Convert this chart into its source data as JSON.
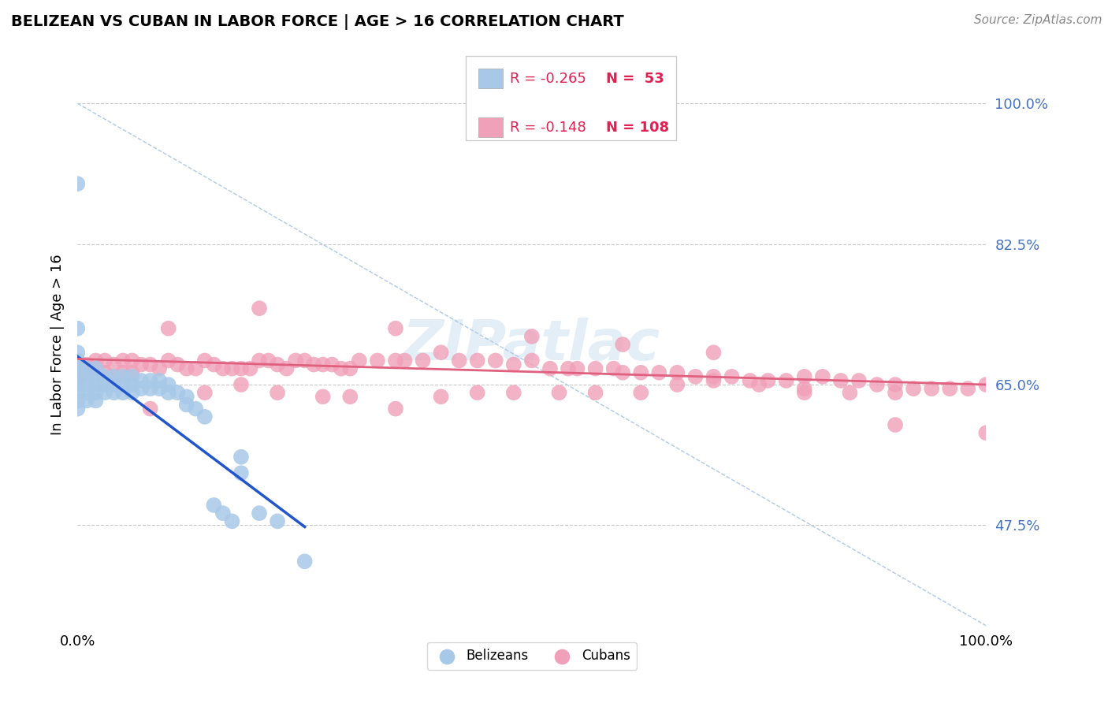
{
  "title": "BELIZEAN VS CUBAN IN LABOR FORCE | AGE > 16 CORRELATION CHART",
  "source": "Source: ZipAtlas.com",
  "ylabel": "In Labor Force | Age > 16",
  "xlim": [
    0.0,
    1.0
  ],
  "ylim": [
    0.35,
    1.05
  ],
  "y_tick_values": [
    0.475,
    0.65,
    0.825,
    1.0
  ],
  "background_color": "#ffffff",
  "grid_color": "#c8c8c8",
  "belizean_color": "#a8c8e8",
  "cuban_color": "#f0a0b8",
  "belizean_line_color": "#2255cc",
  "cuban_line_color": "#e06080",
  "diagonal_color": "#b0c8e8",
  "legend_r_color": "#e02050",
  "legend_n_color": "#e02050",
  "r_belizean": -0.265,
  "n_belizean": 53,
  "r_cuban": -0.148,
  "n_cuban": 108,
  "belizean_scatter_x": [
    0.0,
    0.0,
    0.0,
    0.0,
    0.0,
    0.0,
    0.0,
    0.0,
    0.0,
    0.0,
    0.01,
    0.01,
    0.01,
    0.01,
    0.01,
    0.02,
    0.02,
    0.02,
    0.02,
    0.02,
    0.03,
    0.03,
    0.03,
    0.04,
    0.04,
    0.04,
    0.05,
    0.05,
    0.05,
    0.06,
    0.06,
    0.06,
    0.07,
    0.07,
    0.08,
    0.08,
    0.09,
    0.09,
    0.1,
    0.1,
    0.11,
    0.12,
    0.12,
    0.13,
    0.14,
    0.15,
    0.16,
    0.17,
    0.18,
    0.18,
    0.2,
    0.22,
    0.25
  ],
  "belizean_scatter_y": [
    0.9,
    0.72,
    0.69,
    0.68,
    0.67,
    0.66,
    0.65,
    0.64,
    0.63,
    0.62,
    0.67,
    0.66,
    0.65,
    0.64,
    0.63,
    0.67,
    0.66,
    0.65,
    0.64,
    0.63,
    0.66,
    0.65,
    0.64,
    0.66,
    0.65,
    0.64,
    0.66,
    0.65,
    0.64,
    0.66,
    0.65,
    0.64,
    0.655,
    0.645,
    0.655,
    0.645,
    0.655,
    0.645,
    0.65,
    0.64,
    0.64,
    0.635,
    0.625,
    0.62,
    0.61,
    0.5,
    0.49,
    0.48,
    0.56,
    0.54,
    0.49,
    0.48,
    0.43
  ],
  "cuban_scatter_x": [
    0.0,
    0.0,
    0.0,
    0.01,
    0.01,
    0.02,
    0.02,
    0.03,
    0.03,
    0.04,
    0.04,
    0.05,
    0.05,
    0.06,
    0.06,
    0.07,
    0.08,
    0.09,
    0.1,
    0.11,
    0.12,
    0.13,
    0.14,
    0.15,
    0.16,
    0.17,
    0.18,
    0.19,
    0.2,
    0.21,
    0.22,
    0.23,
    0.24,
    0.25,
    0.26,
    0.27,
    0.28,
    0.29,
    0.3,
    0.31,
    0.33,
    0.35,
    0.36,
    0.38,
    0.4,
    0.42,
    0.44,
    0.46,
    0.48,
    0.5,
    0.52,
    0.54,
    0.55,
    0.57,
    0.59,
    0.6,
    0.62,
    0.64,
    0.66,
    0.68,
    0.7,
    0.72,
    0.74,
    0.76,
    0.78,
    0.8,
    0.82,
    0.84,
    0.86,
    0.88,
    0.9,
    0.92,
    0.94,
    0.96,
    0.98,
    1.0,
    0.08,
    0.1,
    0.14,
    0.18,
    0.22,
    0.27,
    0.3,
    0.35,
    0.4,
    0.44,
    0.48,
    0.53,
    0.57,
    0.62,
    0.66,
    0.7,
    0.75,
    0.8,
    0.85,
    0.9,
    0.2,
    0.35,
    0.5,
    0.6,
    0.7,
    0.8,
    0.9,
    1.0
  ],
  "cuban_scatter_y": [
    0.68,
    0.67,
    0.66,
    0.675,
    0.665,
    0.68,
    0.67,
    0.68,
    0.665,
    0.675,
    0.66,
    0.68,
    0.665,
    0.68,
    0.665,
    0.675,
    0.675,
    0.67,
    0.72,
    0.675,
    0.67,
    0.67,
    0.68,
    0.675,
    0.67,
    0.67,
    0.67,
    0.67,
    0.68,
    0.68,
    0.675,
    0.67,
    0.68,
    0.68,
    0.675,
    0.675,
    0.675,
    0.67,
    0.67,
    0.68,
    0.68,
    0.68,
    0.68,
    0.68,
    0.69,
    0.68,
    0.68,
    0.68,
    0.675,
    0.68,
    0.67,
    0.67,
    0.67,
    0.67,
    0.67,
    0.665,
    0.665,
    0.665,
    0.665,
    0.66,
    0.66,
    0.66,
    0.655,
    0.655,
    0.655,
    0.66,
    0.66,
    0.655,
    0.655,
    0.65,
    0.65,
    0.645,
    0.645,
    0.645,
    0.645,
    0.65,
    0.62,
    0.68,
    0.64,
    0.65,
    0.64,
    0.635,
    0.635,
    0.62,
    0.635,
    0.64,
    0.64,
    0.64,
    0.64,
    0.64,
    0.65,
    0.655,
    0.65,
    0.645,
    0.64,
    0.64,
    0.745,
    0.72,
    0.71,
    0.7,
    0.69,
    0.64,
    0.6,
    0.59
  ],
  "belizean_line_x": [
    0.0,
    0.25
  ],
  "belizean_line_y": [
    0.685,
    0.473
  ],
  "cuban_line_x": [
    0.0,
    1.0
  ],
  "cuban_line_y": [
    0.682,
    0.65
  ]
}
